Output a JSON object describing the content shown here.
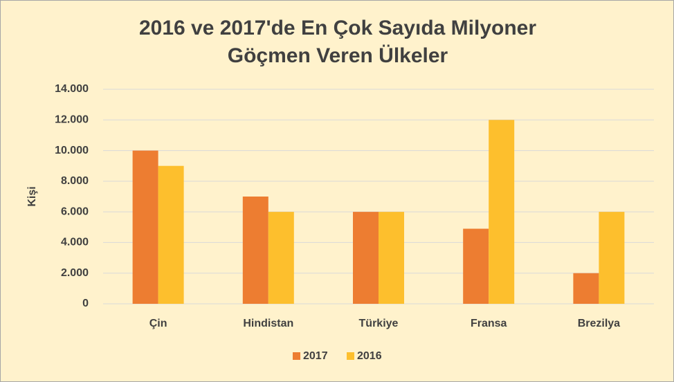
{
  "chart_data": {
    "type": "bar",
    "title": "2016 ve 2017'de En Çok Sayıda Milyoner Göçmen Veren Ülkeler",
    "y_label": "Kişi",
    "categories": [
      "Çin",
      "Hindistan",
      "Türkiye",
      "Fransa",
      "Brezilya"
    ],
    "series": [
      {
        "name": "2017",
        "color": "#ed7d31",
        "values": [
          10000,
          7000,
          6000,
          4900,
          2000
        ]
      },
      {
        "name": "2016",
        "color": "#fdbf2d",
        "values": [
          9000,
          6000,
          6000,
          12000,
          6000
        ]
      }
    ],
    "ylim": [
      0,
      14000
    ],
    "yticks": [
      0,
      {
        "value": 2000,
        "label": "2.000"
      },
      {
        "value": 4000,
        "label": "4.000"
      },
      {
        "value": 6000,
        "label": "6.000"
      },
      {
        "value": 8000,
        "label": "8.000"
      },
      {
        "value": 10000,
        "label": "10.000"
      },
      {
        "value": 12000,
        "label": "12.000"
      },
      {
        "value": 14000,
        "label": "14.000"
      }
    ],
    "grid": true,
    "legend": "bottom"
  }
}
